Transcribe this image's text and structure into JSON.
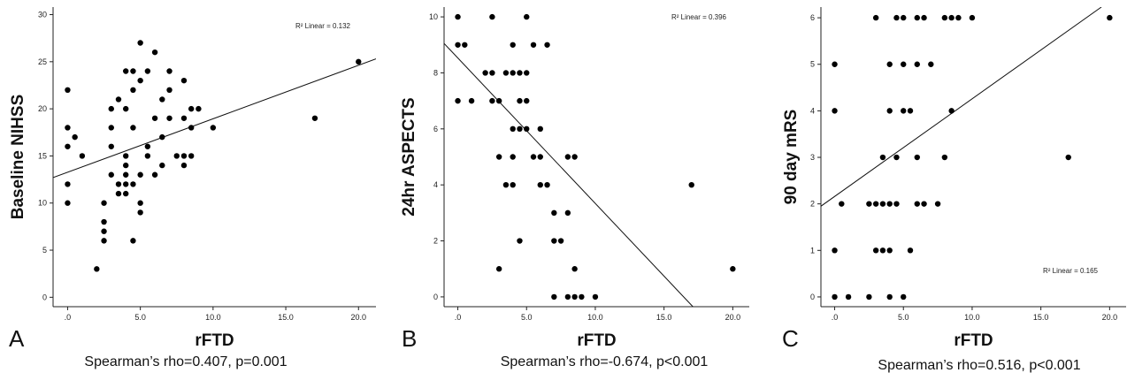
{
  "chart_data": [
    {
      "type": "scatter",
      "panel_label": "A",
      "xlabel": "rFTD",
      "ylabel": "Baseline NIHSS",
      "r2_label": "R² Linear = 0.132",
      "caption": "Spearman’s rho=0.407, p=0.001",
      "xlim": [
        -1,
        21.2
      ],
      "ylim": [
        -1,
        30.8
      ],
      "xticks": [
        0,
        5,
        10,
        15,
        20
      ],
      "xtick_labels": [
        ".0",
        "5.0",
        "10.0",
        "15.0",
        "20.0"
      ],
      "yticks": [
        0,
        5,
        10,
        15,
        20,
        25,
        30
      ],
      "ytick_labels": [
        "0",
        "5",
        "10",
        "15",
        "20",
        "25",
        "30"
      ],
      "fit_line": [
        [
          -1,
          12.7
        ],
        [
          21.2,
          25.3
        ]
      ],
      "points": [
        [
          0,
          22
        ],
        [
          0,
          18
        ],
        [
          0,
          12
        ],
        [
          0,
          10
        ],
        [
          0.5,
          17
        ],
        [
          1,
          15
        ],
        [
          0,
          16
        ],
        [
          2,
          3
        ],
        [
          2.5,
          10
        ],
        [
          2.5,
          8
        ],
        [
          2.5,
          7
        ],
        [
          2.5,
          6
        ],
        [
          3,
          20
        ],
        [
          3,
          18
        ],
        [
          3,
          16
        ],
        [
          3,
          13
        ],
        [
          3.5,
          21
        ],
        [
          3.5,
          12
        ],
        [
          3.5,
          11
        ],
        [
          4,
          24
        ],
        [
          4,
          20
        ],
        [
          4,
          15
        ],
        [
          4,
          14
        ],
        [
          4,
          13
        ],
        [
          4,
          12
        ],
        [
          4,
          11
        ],
        [
          4.5,
          24
        ],
        [
          4.5,
          22
        ],
        [
          4.5,
          18
        ],
        [
          4.5,
          12
        ],
        [
          4.5,
          6
        ],
        [
          5,
          27
        ],
        [
          5,
          23
        ],
        [
          5,
          13
        ],
        [
          5,
          10
        ],
        [
          5,
          9
        ],
        [
          5.5,
          24
        ],
        [
          5.5,
          16
        ],
        [
          5.5,
          15
        ],
        [
          6,
          26
        ],
        [
          6,
          19
        ],
        [
          6,
          13
        ],
        [
          6.5,
          21
        ],
        [
          6.5,
          17
        ],
        [
          6.5,
          14
        ],
        [
          7,
          24
        ],
        [
          7,
          22
        ],
        [
          7,
          19
        ],
        [
          7.5,
          15
        ],
        [
          8,
          23
        ],
        [
          8,
          19
        ],
        [
          8,
          15
        ],
        [
          8,
          14
        ],
        [
          8.5,
          20
        ],
        [
          8.5,
          18
        ],
        [
          8.5,
          15
        ],
        [
          9,
          20
        ],
        [
          10,
          18
        ],
        [
          17,
          19
        ],
        [
          20,
          25
        ]
      ]
    },
    {
      "type": "scatter",
      "panel_label": "B",
      "xlabel": "rFTD",
      "ylabel": "24hr ASPECTS",
      "r2_label": "R² Linear = 0.396",
      "caption": "Spearman’s rho=-0.674, p<0.001",
      "xlim": [
        -1,
        21.2
      ],
      "ylim": [
        -0.35,
        10.35
      ],
      "xticks": [
        0,
        5,
        10,
        15,
        20
      ],
      "xtick_labels": [
        ".0",
        "5.0",
        "10.0",
        "15.0",
        "20.0"
      ],
      "yticks": [
        0,
        2,
        4,
        6,
        8,
        10
      ],
      "ytick_labels": [
        "0",
        "2",
        "4",
        "6",
        "8",
        "10"
      ],
      "fit_line": [
        [
          -1,
          9.05
        ],
        [
          17.1,
          -0.35
        ]
      ],
      "points": [
        [
          0,
          10
        ],
        [
          0,
          9
        ],
        [
          0,
          7
        ],
        [
          0.5,
          9
        ],
        [
          1,
          7
        ],
        [
          2,
          8
        ],
        [
          2.5,
          10
        ],
        [
          2.5,
          8
        ],
        [
          2.5,
          7
        ],
        [
          3,
          7
        ],
        [
          3,
          5
        ],
        [
          3,
          1
        ],
        [
          3.5,
          8
        ],
        [
          3.5,
          4
        ],
        [
          4,
          9
        ],
        [
          4,
          8
        ],
        [
          4,
          6
        ],
        [
          4,
          5
        ],
        [
          4,
          4
        ],
        [
          4.5,
          8
        ],
        [
          4.5,
          7
        ],
        [
          4.5,
          6
        ],
        [
          4.5,
          2
        ],
        [
          5,
          10
        ],
        [
          5,
          8
        ],
        [
          5,
          7
        ],
        [
          5,
          6
        ],
        [
          5.5,
          9
        ],
        [
          5.5,
          5
        ],
        [
          6,
          6
        ],
        [
          6,
          5
        ],
        [
          6,
          4
        ],
        [
          6.5,
          9
        ],
        [
          6.5,
          4
        ],
        [
          7,
          3
        ],
        [
          7,
          2
        ],
        [
          7,
          0
        ],
        [
          7.5,
          2
        ],
        [
          8,
          5
        ],
        [
          8,
          3
        ],
        [
          8,
          0
        ],
        [
          8.5,
          5
        ],
        [
          8.5,
          1
        ],
        [
          8.5,
          0
        ],
        [
          9,
          0
        ],
        [
          10,
          0
        ],
        [
          17,
          4
        ],
        [
          20,
          1
        ]
      ]
    },
    {
      "type": "scatter",
      "panel_label": "C",
      "xlabel": "rFTD",
      "ylabel": "90 day mRS",
      "r2_label": "R² Linear = 0.165",
      "caption": "Spearman’s rho=0.516, p<0.001",
      "xlim": [
        -1,
        21.2
      ],
      "ylim": [
        -0.21,
        6.23
      ],
      "xticks": [
        0,
        5,
        10,
        15,
        20
      ],
      "xtick_labels": [
        ".0",
        "5.0",
        "10.0",
        "15.0",
        "20.0"
      ],
      "yticks": [
        0,
        1,
        2,
        3,
        4,
        5,
        6
      ],
      "ytick_labels": [
        "0",
        "1",
        "2",
        "3",
        "4",
        "5",
        "6"
      ],
      "fit_line": [
        [
          -1,
          1.95
        ],
        [
          19.4,
          6.23
        ]
      ],
      "points": [
        [
          0,
          5
        ],
        [
          0,
          4
        ],
        [
          0,
          1
        ],
        [
          0,
          0
        ],
        [
          0.5,
          2
        ],
        [
          1,
          0
        ],
        [
          2.5,
          2
        ],
        [
          2.5,
          0
        ],
        [
          3,
          6
        ],
        [
          3,
          2
        ],
        [
          3,
          1
        ],
        [
          3.5,
          3
        ],
        [
          3.5,
          2
        ],
        [
          3.5,
          1
        ],
        [
          4,
          5
        ],
        [
          4,
          4
        ],
        [
          4,
          2
        ],
        [
          4,
          1
        ],
        [
          4,
          0
        ],
        [
          4.5,
          6
        ],
        [
          4.5,
          3
        ],
        [
          4.5,
          2
        ],
        [
          5,
          6
        ],
        [
          5,
          5
        ],
        [
          5,
          4
        ],
        [
          5,
          0
        ],
        [
          5.5,
          4
        ],
        [
          5.5,
          1
        ],
        [
          6,
          6
        ],
        [
          6,
          5
        ],
        [
          6,
          3
        ],
        [
          6,
          2
        ],
        [
          6.5,
          6
        ],
        [
          6.5,
          2
        ],
        [
          7,
          5
        ],
        [
          7.5,
          2
        ],
        [
          8,
          6
        ],
        [
          8,
          3
        ],
        [
          8.5,
          6
        ],
        [
          8.5,
          4
        ],
        [
          9,
          6
        ],
        [
          10,
          6
        ],
        [
          17,
          3
        ],
        [
          20,
          6
        ]
      ]
    }
  ]
}
